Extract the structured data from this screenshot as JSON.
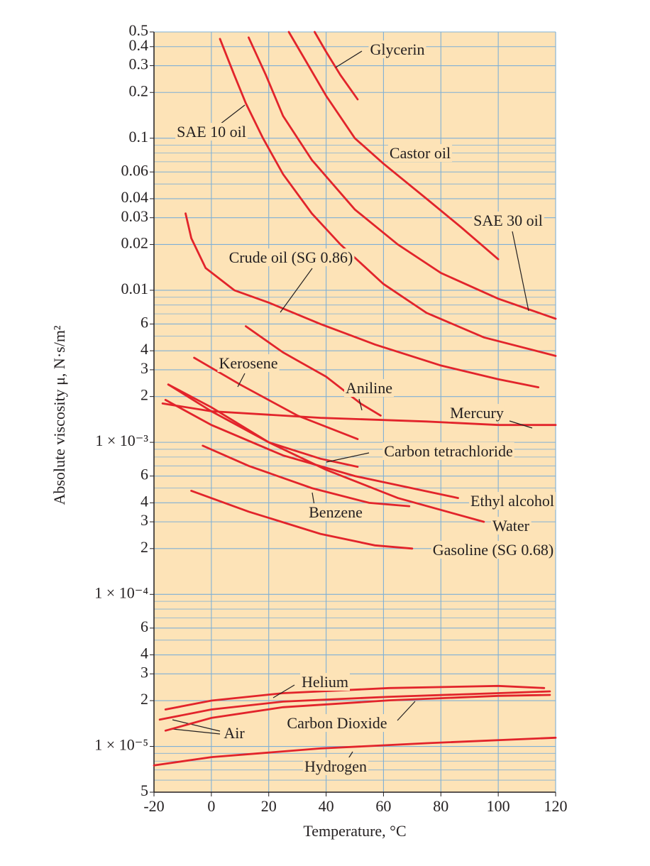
{
  "chart_data": {
    "type": "line",
    "yscale": "log",
    "grid": true,
    "color": "#e2242b",
    "xlabel": "Temperature, °C",
    "ylabel": "Absolute viscosity μ, N·s/m²",
    "xlim": [
      -20,
      120
    ],
    "xticks": [
      -20,
      0,
      20,
      40,
      60,
      80,
      100,
      120
    ],
    "ylim": [
      5e-06,
      0.5
    ],
    "yticks": [
      0.5,
      0.4,
      0.3,
      0.2,
      0.1,
      0.06,
      0.04,
      0.03,
      0.02,
      0.01,
      {
        "value": 0.006,
        "label": "6"
      },
      {
        "value": 0.004,
        "label": "4"
      },
      {
        "value": 0.003,
        "label": "3"
      },
      {
        "value": 0.002,
        "label": "2"
      },
      {
        "value": 0.001,
        "label": "1 × 10⁻³"
      },
      {
        "value": 0.0006,
        "label": "6"
      },
      {
        "value": 0.0004,
        "label": "4"
      },
      {
        "value": 0.0003,
        "label": "3"
      },
      {
        "value": 0.0002,
        "label": "2"
      },
      {
        "value": 0.0001,
        "label": "1 × 10⁻⁴"
      },
      {
        "value": 6e-05,
        "label": "6"
      },
      {
        "value": 4e-05,
        "label": "4"
      },
      {
        "value": 3e-05,
        "label": "3"
      },
      {
        "value": 2e-05,
        "label": "2"
      },
      {
        "value": 1e-05,
        "label": "1 × 10⁻⁵"
      },
      {
        "value": 5e-06,
        "label": "5"
      }
    ],
    "minor_yticks": [
      0.05,
      0.07,
      0.08,
      0.09,
      0.005,
      0.007,
      0.008,
      0.009,
      0.0005,
      0.0007,
      0.0008,
      0.0009,
      5e-05,
      7e-05,
      8e-05,
      9e-05,
      6e-06,
      7e-06,
      8e-06,
      9e-06
    ],
    "series": [
      {
        "name": "Glycerin",
        "x": [
          36,
          40,
          45,
          51
        ],
        "values": [
          0.5,
          0.37,
          0.26,
          0.18
        ]
      },
      {
        "name": "SAE 10 oil",
        "x": [
          3,
          8,
          12,
          18,
          25,
          35,
          45,
          60,
          75,
          95,
          120
        ],
        "values": [
          0.45,
          0.26,
          0.17,
          0.1,
          0.058,
          0.032,
          0.02,
          0.011,
          0.0071,
          0.0049,
          0.0037
        ]
      },
      {
        "name": "Castor oil",
        "x": [
          27,
          33,
          40,
          50,
          60,
          75,
          87,
          100
        ],
        "values": [
          0.5,
          0.32,
          0.19,
          0.1,
          0.068,
          0.04,
          0.026,
          0.016
        ]
      },
      {
        "name": "SAE 30 oil",
        "x": [
          13,
          19,
          25,
          35,
          50,
          65,
          80,
          100,
          120
        ],
        "values": [
          0.46,
          0.26,
          0.14,
          0.072,
          0.034,
          0.02,
          0.013,
          0.0088,
          0.0065
        ]
      },
      {
        "name": "Crude oil (SG 0.86)",
        "x": [
          -9,
          -7,
          -2,
          8,
          20,
          38,
          57,
          80,
          100,
          114
        ],
        "values": [
          0.032,
          0.022,
          0.014,
          0.01,
          0.0083,
          0.006,
          0.0044,
          0.0032,
          0.0026,
          0.0023
        ]
      },
      {
        "name": "Aniline",
        "x": [
          12,
          25,
          40,
          52,
          59
        ],
        "values": [
          0.0058,
          0.0039,
          0.0027,
          0.0018,
          0.0015
        ]
      },
      {
        "name": "Kerosene",
        "x": [
          -6,
          10,
          30,
          51
        ],
        "values": [
          0.0036,
          0.0024,
          0.0015,
          0.00105
        ]
      },
      {
        "name": "Mercury",
        "x": [
          -17,
          0,
          38,
          75,
          100,
          120
        ],
        "values": [
          0.0018,
          0.0016,
          0.00145,
          0.00137,
          0.0013,
          0.0013
        ]
      },
      {
        "name": "Carbon tetrachloride",
        "x": [
          -15,
          0,
          20,
          38,
          51
        ],
        "values": [
          0.0024,
          0.0016,
          0.001,
          0.00078,
          0.00069
        ]
      },
      {
        "name": "Ethyl alcohol",
        "x": [
          -16,
          0,
          25,
          50,
          86
        ],
        "values": [
          0.0019,
          0.0013,
          0.00082,
          0.0006,
          0.00043
        ]
      },
      {
        "name": "Water",
        "x": [
          -15,
          0,
          20,
          40,
          65,
          95
        ],
        "values": [
          0.0024,
          0.0017,
          0.001,
          0.00066,
          0.00043,
          0.0003
        ]
      },
      {
        "name": "Benzene",
        "x": [
          -3,
          13,
          35,
          55,
          69
        ],
        "values": [
          0.00095,
          0.0007,
          0.0005,
          0.0004,
          0.00038
        ]
      },
      {
        "name": "Gasoline (SG 0.68)",
        "x": [
          -7,
          13,
          38,
          57,
          70
        ],
        "values": [
          0.00048,
          0.00035,
          0.00025,
          0.00021,
          0.0002
        ]
      },
      {
        "name": "Helium",
        "x": [
          -16,
          0,
          25,
          62,
          100,
          116
        ],
        "values": [
          1.75e-05,
          2e-05,
          2.24e-05,
          2.42e-05,
          2.5e-05,
          2.42e-05
        ]
      },
      {
        "name": "Air",
        "x": [
          -18,
          0,
          25,
          62,
          100,
          118
        ],
        "values": [
          1.5e-05,
          1.75e-05,
          1.97e-05,
          2.12e-05,
          2.24e-05,
          2.3e-05
        ]
      },
      {
        "name": "Carbon Dioxide",
        "x": [
          -16,
          0,
          25,
          62,
          100,
          118
        ],
        "values": [
          1.27e-05,
          1.54e-05,
          1.81e-05,
          2.01e-05,
          2.15e-05,
          2.18e-05
        ]
      },
      {
        "name": "Hydrogen",
        "x": [
          -20,
          0,
          38,
          75,
          120
        ],
        "values": [
          7.5e-06,
          8.5e-06,
          9.7e-06,
          1.05e-05,
          1.14e-05
        ]
      }
    ]
  }
}
